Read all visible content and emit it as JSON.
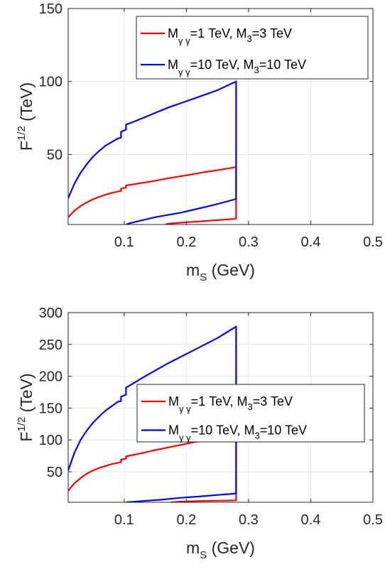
{
  "chart_data": [
    {
      "type": "line",
      "xlabel": "m",
      "xlabel_sub": "S",
      "xlabel_unit": " (GeV)",
      "ylabel": "F",
      "ylabel_sup": "1/2",
      "ylabel_unit": " (TeV)",
      "xlim": [
        0.01,
        0.5
      ],
      "ylim": [
        2,
        150
      ],
      "xticks": [
        0.1,
        0.2,
        0.3,
        0.4,
        0.5
      ],
      "xtick_labels": [
        "0.1",
        "0.2",
        "0.3",
        "0.4",
        "0.5"
      ],
      "yticks": [
        50,
        100,
        150
      ],
      "ytick_labels": [
        "50",
        "100",
        "150"
      ],
      "grid": true,
      "legend_position": "top-right",
      "series": [
        {
          "name": "Mγγ=1 TeV, M3=3 TeV",
          "legend": {
            "m": "M",
            "sub": "γ γ",
            "mid": "=1 TeV, M",
            "sub2": "3",
            "end": "=3 TeV"
          },
          "color": "#ff0000",
          "x": [
            0.01,
            0.02,
            0.03,
            0.04,
            0.05,
            0.06,
            0.07,
            0.08,
            0.09,
            0.095,
            0.095,
            0.1,
            0.103,
            0.103,
            0.11,
            0.13,
            0.15,
            0.17,
            0.19,
            0.21,
            0.23,
            0.25,
            0.27,
            0.28,
            0.28,
            0.27,
            0.25,
            0.23,
            0.21,
            0.19,
            0.17,
            0.166
          ],
          "y": [
            7,
            11.5,
            14.6,
            17.2,
            19.3,
            21,
            22.4,
            23.6,
            24.6,
            25,
            26.6,
            27,
            27.2,
            28.8,
            29.2,
            30.6,
            32,
            33.6,
            35,
            36.4,
            38,
            39.2,
            40.6,
            41.5,
            6,
            5.6,
            5,
            4.4,
            3.8,
            3.2,
            2.5,
            2
          ]
        },
        {
          "name": "Mγγ=10 TeV, M3=10 TeV",
          "legend": {
            "m": "M",
            "sub": "γ γ",
            "mid": "=10 TeV, M",
            "sub2": "3",
            "end": "=10 TeV"
          },
          "color": "#0000ff",
          "x": [
            0.01,
            0.02,
            0.03,
            0.04,
            0.05,
            0.06,
            0.07,
            0.08,
            0.09,
            0.095,
            0.095,
            0.1,
            0.103,
            0.103,
            0.11,
            0.13,
            0.15,
            0.17,
            0.19,
            0.21,
            0.23,
            0.25,
            0.27,
            0.28,
            0.28,
            0.27,
            0.25,
            0.23,
            0.21,
            0.19,
            0.17,
            0.15,
            0.13,
            0.11,
            0.103
          ],
          "y": [
            20,
            30,
            37.5,
            43.5,
            48.5,
            52.5,
            56,
            58.5,
            61,
            61.5,
            65.5,
            66.5,
            67,
            70.5,
            71.5,
            75,
            78.5,
            82,
            85,
            88,
            91,
            94,
            98,
            100,
            19.5,
            18.3,
            16,
            14,
            12,
            10,
            8.5,
            7,
            5,
            3,
            2
          ]
        }
      ]
    },
    {
      "type": "line",
      "xlabel": "m",
      "xlabel_sub": "S",
      "xlabel_unit": " (GeV)",
      "ylabel": "F",
      "ylabel_sup": "1/2",
      "ylabel_unit": " (TeV)",
      "xlim": [
        0.01,
        0.5
      ],
      "ylim": [
        2,
        300
      ],
      "xticks": [
        0.1,
        0.2,
        0.3,
        0.4,
        0.5
      ],
      "xtick_labels": [
        "0.1",
        "0.2",
        "0.3",
        "0.4",
        "0.5"
      ],
      "yticks": [
        50,
        100,
        150,
        200,
        250,
        300
      ],
      "ytick_labels": [
        "50",
        "100",
        "150",
        "200",
        "250",
        "300"
      ],
      "grid": true,
      "legend_position": "center",
      "series": [
        {
          "name": "Mγγ=1 TeV, M3=3 TeV",
          "legend": {
            "m": "M",
            "sub": "γ γ",
            "mid": "=1 TeV, M",
            "sub2": "3",
            "end": "=3 TeV"
          },
          "color": "#ff0000",
          "x": [
            0.01,
            0.02,
            0.03,
            0.04,
            0.05,
            0.06,
            0.07,
            0.08,
            0.09,
            0.095,
            0.095,
            0.1,
            0.103,
            0.103,
            0.11,
            0.13,
            0.15,
            0.17,
            0.19,
            0.21,
            0.23,
            0.25,
            0.27,
            0.28,
            0.28,
            0.25,
            0.22,
            0.19,
            0.175
          ],
          "y": [
            20,
            32,
            40,
            47,
            52,
            56,
            59,
            62,
            64,
            65,
            69,
            70,
            70.5,
            74,
            75.5,
            79.5,
            84,
            88,
            92,
            96,
            100,
            104,
            109,
            112,
            5,
            4.5,
            4,
            3,
            2
          ]
        },
        {
          "name": "Mγγ=10 TeV, M3=10 TeV",
          "legend": {
            "m": "M",
            "sub": "γ γ",
            "mid": "=10 TeV, M",
            "sub2": "3",
            "end": "=10 TeV"
          },
          "color": "#0000ff",
          "x": [
            0.01,
            0.02,
            0.03,
            0.04,
            0.05,
            0.06,
            0.07,
            0.08,
            0.09,
            0.095,
            0.095,
            0.1,
            0.103,
            0.103,
            0.11,
            0.13,
            0.15,
            0.17,
            0.19,
            0.21,
            0.23,
            0.25,
            0.27,
            0.28,
            0.28,
            0.27,
            0.25,
            0.22,
            0.19,
            0.16,
            0.13,
            0.11,
            0.103
          ],
          "y": [
            52,
            80,
            100,
            115,
            127,
            137,
            146,
            153,
            160,
            161,
            168,
            170,
            171,
            182,
            186,
            198,
            209,
            220,
            230,
            240,
            250,
            260,
            272,
            278,
            16,
            15,
            13.5,
            11,
            9,
            6,
            4,
            2.5,
            2
          ]
        }
      ]
    }
  ]
}
